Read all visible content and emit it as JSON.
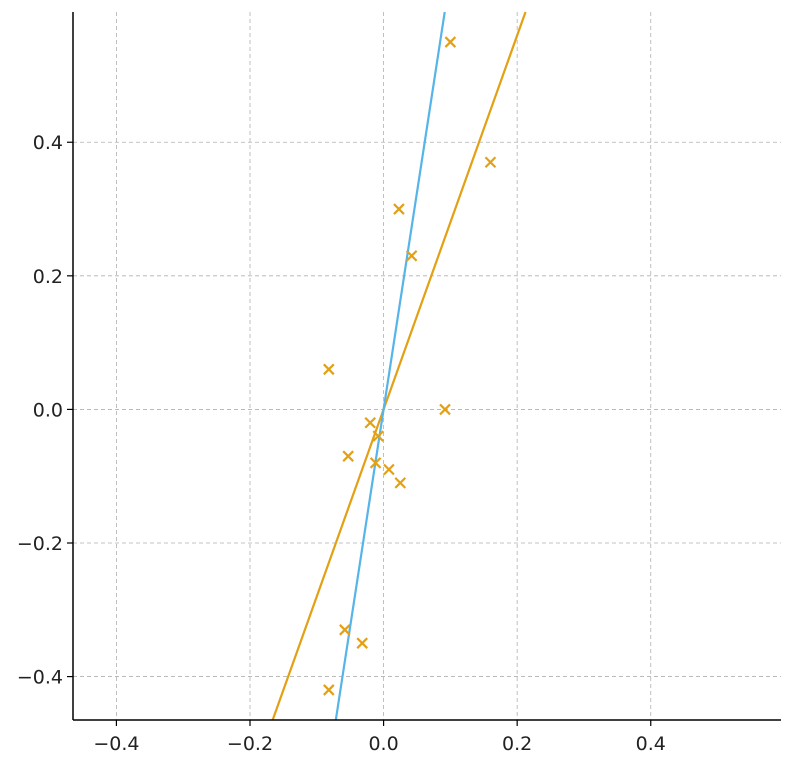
{
  "chart_data": {
    "type": "scatter",
    "title": "",
    "xlabel": "",
    "ylabel": "",
    "xlim": [
      -0.465,
      0.595
    ],
    "ylim": [
      -0.465,
      0.595
    ],
    "grid": true,
    "x_ticks": [
      -0.4,
      -0.2,
      0.0,
      0.2,
      0.4
    ],
    "x_tick_labels": [
      "−0.4",
      "−0.2",
      "0.0",
      "0.2",
      "0.4"
    ],
    "y_ticks": [
      -0.4,
      -0.2,
      0.0,
      0.2,
      0.4
    ],
    "y_tick_labels": [
      "−0.4",
      "−0.2",
      "0.0",
      "0.2",
      "0.4"
    ],
    "points": {
      "color": "#e3a013",
      "marker": "x",
      "x": [
        0.1,
        0.16,
        0.023,
        0.042,
        -0.082,
        0.092,
        -0.02,
        -0.008,
        -0.053,
        -0.012,
        0.008,
        0.025,
        -0.058,
        -0.032,
        -0.082
      ],
      "y": [
        0.55,
        0.37,
        0.3,
        0.23,
        0.06,
        0.0,
        -0.02,
        -0.04,
        -0.07,
        -0.08,
        -0.09,
        -0.11,
        -0.33,
        -0.35,
        -0.42
      ]
    },
    "lines": [
      {
        "color": "#e3a013",
        "slope": 2.8,
        "intercept": 0.0
      },
      {
        "color": "#56b4e9",
        "slope": 6.5,
        "intercept": 0.0
      }
    ]
  }
}
